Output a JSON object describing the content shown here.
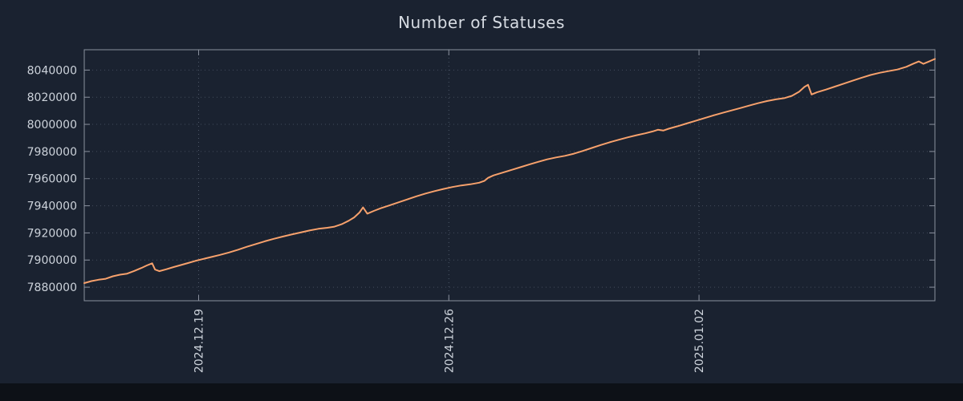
{
  "page": {
    "background": "#1a2230",
    "footer_color": "#0d1117"
  },
  "chart_data": {
    "type": "line",
    "title": "Number of Statuses",
    "series_name": "statuses",
    "line_color": "#f7a16c",
    "background": "#1a2230",
    "axis_color": "#8a919e",
    "grid_color": "#515b6b",
    "text_color": "#ccd2da",
    "x_unit": "days relative to 2024.12.19",
    "xlim": [
      -3.2,
      20.6
    ],
    "ylim": [
      7870000,
      8055000
    ],
    "x_ticks": [
      {
        "x": 0,
        "label": "2024.12.19"
      },
      {
        "x": 7,
        "label": "2024.12.26"
      },
      {
        "x": 14,
        "label": "2025.01.02"
      }
    ],
    "y_ticks": [
      7880000,
      7900000,
      7920000,
      7940000,
      7960000,
      7980000,
      8000000,
      8020000,
      8040000
    ],
    "points": [
      [
        -3.2,
        7883000
      ],
      [
        -3.0,
        7884500
      ],
      [
        -2.8,
        7885500
      ],
      [
        -2.6,
        7886200
      ],
      [
        -2.4,
        7888000
      ],
      [
        -2.2,
        7889200
      ],
      [
        -2.0,
        7890000
      ],
      [
        -1.8,
        7892000
      ],
      [
        -1.6,
        7894200
      ],
      [
        -1.45,
        7896000
      ],
      [
        -1.3,
        7897600
      ],
      [
        -1.22,
        7893000
      ],
      [
        -1.1,
        7891800
      ],
      [
        -0.9,
        7893200
      ],
      [
        -0.7,
        7894800
      ],
      [
        -0.5,
        7896300
      ],
      [
        -0.3,
        7897800
      ],
      [
        -0.1,
        7899300
      ],
      [
        0.1,
        7900600
      ],
      [
        0.35,
        7902200
      ],
      [
        0.6,
        7903800
      ],
      [
        0.85,
        7905600
      ],
      [
        1.1,
        7907600
      ],
      [
        1.35,
        7909800
      ],
      [
        1.6,
        7911800
      ],
      [
        1.85,
        7913800
      ],
      [
        2.1,
        7915600
      ],
      [
        2.35,
        7917300
      ],
      [
        2.6,
        7918800
      ],
      [
        2.85,
        7920300
      ],
      [
        3.1,
        7921800
      ],
      [
        3.35,
        7923000
      ],
      [
        3.6,
        7923800
      ],
      [
        3.8,
        7924600
      ],
      [
        4.0,
        7926400
      ],
      [
        4.2,
        7929000
      ],
      [
        4.35,
        7931400
      ],
      [
        4.5,
        7935000
      ],
      [
        4.6,
        7938800
      ],
      [
        4.72,
        7934200
      ],
      [
        4.9,
        7936200
      ],
      [
        5.1,
        7938200
      ],
      [
        5.35,
        7940400
      ],
      [
        5.6,
        7942600
      ],
      [
        5.85,
        7944800
      ],
      [
        6.1,
        7947000
      ],
      [
        6.35,
        7949000
      ],
      [
        6.6,
        7950800
      ],
      [
        6.85,
        7952400
      ],
      [
        7.1,
        7953800
      ],
      [
        7.35,
        7955000
      ],
      [
        7.6,
        7955800
      ],
      [
        7.85,
        7957000
      ],
      [
        8.0,
        7958400
      ],
      [
        8.1,
        7960600
      ],
      [
        8.25,
        7962400
      ],
      [
        8.5,
        7964400
      ],
      [
        8.75,
        7966400
      ],
      [
        9.0,
        7968400
      ],
      [
        9.25,
        7970400
      ],
      [
        9.5,
        7972400
      ],
      [
        9.75,
        7974200
      ],
      [
        10.0,
        7975600
      ],
      [
        10.25,
        7976800
      ],
      [
        10.5,
        7978400
      ],
      [
        10.75,
        7980400
      ],
      [
        11.0,
        7982600
      ],
      [
        11.25,
        7984800
      ],
      [
        11.5,
        7986800
      ],
      [
        11.75,
        7988600
      ],
      [
        12.0,
        7990400
      ],
      [
        12.25,
        7992000
      ],
      [
        12.5,
        7993400
      ],
      [
        12.7,
        7994800
      ],
      [
        12.85,
        7996000
      ],
      [
        13.0,
        7995400
      ],
      [
        13.15,
        7996800
      ],
      [
        13.4,
        7998600
      ],
      [
        13.65,
        8000600
      ],
      [
        13.9,
        8002600
      ],
      [
        14.15,
        8004600
      ],
      [
        14.4,
        8006600
      ],
      [
        14.65,
        8008400
      ],
      [
        14.9,
        8010200
      ],
      [
        15.15,
        8012000
      ],
      [
        15.4,
        8013800
      ],
      [
        15.65,
        8015600
      ],
      [
        15.9,
        8017200
      ],
      [
        16.15,
        8018400
      ],
      [
        16.4,
        8019400
      ],
      [
        16.6,
        8021000
      ],
      [
        16.8,
        8024000
      ],
      [
        16.95,
        8027600
      ],
      [
        17.05,
        8029200
      ],
      [
        17.15,
        8022000
      ],
      [
        17.3,
        8023600
      ],
      [
        17.55,
        8025600
      ],
      [
        17.8,
        8027800
      ],
      [
        18.05,
        8030000
      ],
      [
        18.3,
        8032200
      ],
      [
        18.55,
        8034400
      ],
      [
        18.8,
        8036400
      ],
      [
        19.05,
        8038000
      ],
      [
        19.3,
        8039200
      ],
      [
        19.55,
        8040400
      ],
      [
        19.8,
        8042400
      ],
      [
        20.0,
        8044800
      ],
      [
        20.15,
        8046400
      ],
      [
        20.28,
        8044600
      ],
      [
        20.42,
        8046200
      ],
      [
        20.6,
        8048200
      ]
    ]
  }
}
